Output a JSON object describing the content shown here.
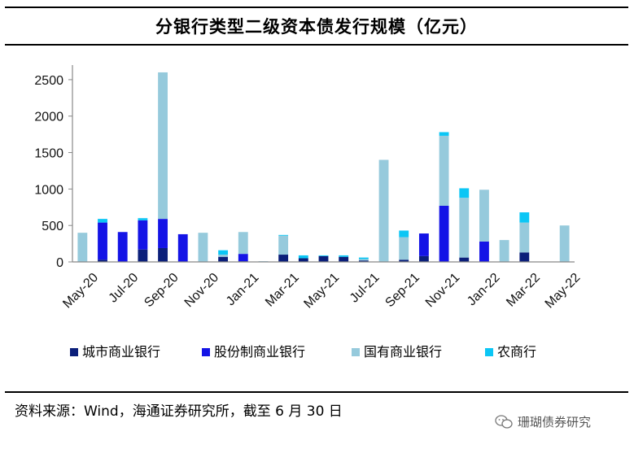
{
  "title": "分银行类型二级资本债发行规模（亿元）",
  "source_text": "资料来源：Wind，海通证券研究所，截至 6 月 30 日",
  "watermark_text": "珊瑚债券研究",
  "watermark_icon": "wechat-icon",
  "chart_data": {
    "type": "bar",
    "stacked": true,
    "title": "",
    "xlabel": "",
    "ylabel": "",
    "ylim": [
      0,
      2700
    ],
    "y_ticks": [
      0,
      500,
      1000,
      1500,
      2000,
      2500
    ],
    "categories": [
      "May-20",
      "Jun-20",
      "Jul-20",
      "Aug-20",
      "Sep-20",
      "Oct-20",
      "Nov-20",
      "Dec-20",
      "Jan-21",
      "Feb-21",
      "Mar-21",
      "Apr-21",
      "May-21",
      "Jun-21",
      "Jul-21",
      "Aug-21",
      "Sep-21",
      "Oct-21",
      "Nov-21",
      "Dec-21",
      "Jan-22",
      "Feb-22",
      "Mar-22",
      "Apr-22",
      "May-22"
    ],
    "x_tick_labels": [
      "May-20",
      "Jul-20",
      "Sep-20",
      "Nov-20",
      "Jan-21",
      "Mar-21",
      "May-21",
      "Jul-21",
      "Sep-21",
      "Nov-21",
      "Jan-22",
      "Mar-22",
      "May-22"
    ],
    "series": [
      {
        "name": "城市商业银行",
        "color": "#0b1f7a",
        "values": [
          0,
          30,
          0,
          170,
          190,
          0,
          0,
          70,
          10,
          0,
          100,
          50,
          80,
          70,
          20,
          0,
          30,
          80,
          0,
          60,
          0,
          0,
          130,
          0,
          0
        ]
      },
      {
        "name": "股份制商业银行",
        "color": "#1414e6",
        "values": [
          0,
          510,
          410,
          400,
          400,
          380,
          0,
          0,
          100,
          0,
          0,
          0,
          0,
          0,
          0,
          0,
          0,
          310,
          770,
          0,
          280,
          0,
          0,
          0,
          0
        ]
      },
      {
        "name": "国有商业银行",
        "color": "#96cadc",
        "values": [
          400,
          0,
          0,
          0,
          2010,
          0,
          400,
          30,
          300,
          10,
          260,
          0,
          0,
          0,
          20,
          1400,
          310,
          0,
          960,
          820,
          710,
          300,
          410,
          0,
          500
        ]
      },
      {
        "name": "农商行",
        "color": "#0bc6f5",
        "values": [
          0,
          50,
          0,
          30,
          0,
          0,
          0,
          60,
          0,
          0,
          10,
          40,
          10,
          20,
          20,
          0,
          90,
          0,
          50,
          130,
          0,
          0,
          140,
          0,
          0
        ]
      }
    ],
    "legend_position": "bottom",
    "grid": false
  }
}
